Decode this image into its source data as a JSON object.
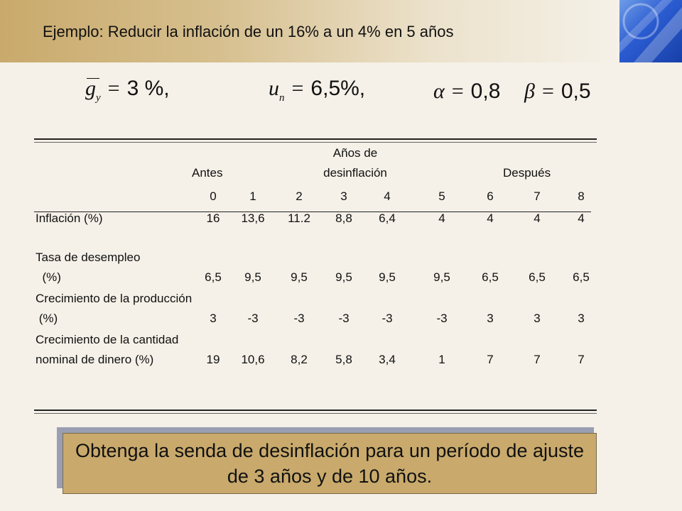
{
  "title": "Ejemplo:  Reducir la inflación de un 16% a un 4% en 5 años",
  "formulas": {
    "gy": {
      "symbol": "g",
      "subscript": "y",
      "equals": "=",
      "value": "3 %,"
    },
    "un": {
      "symbol": "u",
      "subscript": "n",
      "equals": "=",
      "value": "6,5%,"
    },
    "alpha": {
      "symbol": "α",
      "equals": "=",
      "value": "0,8"
    },
    "beta": {
      "symbol": "β",
      "equals": "=",
      "value": "0,5"
    }
  },
  "table": {
    "group_headers": {
      "antes": "Antes",
      "desinflacion_line1": "Años de",
      "desinflacion_line2": "desinflación",
      "despues": "Después"
    },
    "years": [
      "0",
      "1",
      "2",
      "3",
      "4",
      "5",
      "6",
      "7",
      "8"
    ],
    "rows": [
      {
        "label_lines": [
          "Inflación (%)"
        ],
        "values": [
          "16",
          "13,6",
          "11.2",
          "8,8",
          "6,4",
          "4",
          "4",
          "4",
          "4"
        ]
      },
      {
        "label_lines": [
          "Tasa de desempleo",
          "  (%)"
        ],
        "values": [
          "6,5",
          "9,5",
          "9,5",
          "9,5",
          "9,5",
          "9,5",
          "6,5",
          "6,5",
          "6,5"
        ]
      },
      {
        "label_lines": [
          "Crecimiento de la producción",
          " (%)"
        ],
        "values": [
          "3",
          "-3",
          "-3",
          "-3",
          "-3",
          "-3",
          "3",
          "3",
          "3"
        ]
      },
      {
        "label_lines": [
          "Crecimiento de la cantidad",
          "nominal de dinero (%)"
        ],
        "values": [
          "19",
          "10,6",
          "8,2",
          "5,8",
          "3,4",
          "1",
          "7",
          "7",
          "7"
        ]
      }
    ]
  },
  "callout": "Obtenga la senda de desinflación para un período de ajuste de 3 años y de 10 años.",
  "colors": {
    "accent": "#c9aa6c",
    "background": "#f5f1e8",
    "corner": "#2a5bd0"
  }
}
